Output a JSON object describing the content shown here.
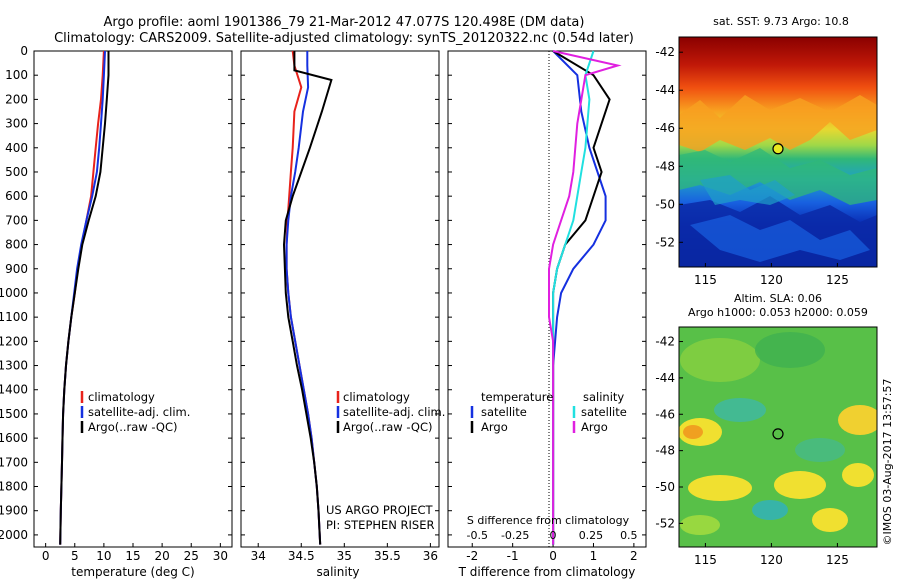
{
  "header": {
    "line1": "Argo profile: aoml 1901386_79 21-Mar-2012 47.077S 120.498E (DM data)",
    "line2": "Climatology: CARS2009. Satellite-adjusted climatology: synTS_20120322.nc (0.54d later)"
  },
  "colors": {
    "climatology": "#e8221b",
    "satellite": "#1530e0",
    "argo": "#000000",
    "satellite_s": "#20e0e0",
    "argo_s": "#e020e0"
  },
  "chart_data": [
    {
      "id": "temperature-panel",
      "type": "line",
      "xlabel": "temperature (deg C)",
      "xticks": [
        "0",
        "5",
        "10",
        "15",
        "20",
        "25",
        "30"
      ],
      "xlim": [
        -2,
        32
      ],
      "ylim": [
        0,
        2050
      ],
      "yticks": [
        "0",
        "100",
        "200",
        "300",
        "400",
        "500",
        "600",
        "700",
        "800",
        "900",
        "1000",
        "1100",
        "1200",
        "1300",
        "1400",
        "1500",
        "1600",
        "1700",
        "1800",
        "1900",
        "2000"
      ],
      "legend": [
        "climatology",
        "satellite-adj. clim.",
        "Argo(..raw -QC)"
      ],
      "series": [
        {
          "name": "climatology",
          "color_key": "climatology",
          "x": [
            10.0,
            9.8,
            9.5,
            9.0,
            8.6,
            8.2,
            7.8,
            7.0,
            6.2,
            5.5,
            5.0,
            4.4,
            3.9,
            3.5,
            3.2,
            3.0,
            2.9,
            2.8,
            2.7,
            2.6,
            2.5
          ],
          "y": [
            0,
            100,
            200,
            300,
            400,
            500,
            600,
            700,
            800,
            900,
            1000,
            1100,
            1200,
            1300,
            1400,
            1500,
            1600,
            1700,
            1800,
            1900,
            2040
          ]
        },
        {
          "name": "satellite-adj. clim.",
          "color_key": "satellite",
          "x": [
            10.2,
            10.0,
            9.8,
            9.5,
            9.2,
            8.8,
            8.0,
            7.0,
            6.1,
            5.4,
            4.9,
            4.4,
            3.9,
            3.5,
            3.2,
            3.0,
            2.9,
            2.8,
            2.7,
            2.6,
            2.5
          ],
          "y": [
            0,
            100,
            200,
            300,
            400,
            500,
            600,
            700,
            800,
            900,
            1000,
            1100,
            1200,
            1300,
            1400,
            1500,
            1600,
            1700,
            1800,
            1900,
            2040
          ]
        },
        {
          "name": "Argo(..raw -QC)",
          "color_key": "argo",
          "x": [
            10.8,
            10.8,
            10.5,
            10.2,
            9.8,
            9.4,
            8.6,
            7.4,
            6.3,
            5.6,
            5.0,
            4.4,
            3.9,
            3.5,
            3.2,
            3.0,
            2.9,
            2.8,
            2.7,
            2.6,
            2.5
          ],
          "y": [
            0,
            100,
            200,
            300,
            400,
            500,
            600,
            700,
            800,
            900,
            1000,
            1100,
            1200,
            1300,
            1400,
            1500,
            1600,
            1700,
            1800,
            1900,
            2040
          ]
        }
      ]
    },
    {
      "id": "salinity-panel",
      "type": "line",
      "xlabel": "salinity",
      "xticks": [
        "34",
        "34.5",
        "35",
        "35.5",
        "36"
      ],
      "xlim": [
        33.8,
        36.1
      ],
      "ylim": [
        0,
        2050
      ],
      "legend": [
        "climatology",
        "satellite-adj. clim.",
        "Argo(..raw -QC)"
      ],
      "annotation": [
        "US ARGO PROJECT",
        "PI: STEPHEN RISER"
      ],
      "series": [
        {
          "name": "climatology",
          "color_key": "climatology",
          "x": [
            34.4,
            34.42,
            34.5,
            34.42,
            34.4,
            34.38,
            34.36,
            34.34,
            34.33,
            34.33,
            34.35,
            34.38,
            34.43,
            34.48,
            34.53,
            34.58,
            34.62,
            34.65,
            34.68,
            34.7,
            34.72
          ],
          "y": [
            0,
            60,
            150,
            250,
            400,
            500,
            600,
            700,
            800,
            900,
            1000,
            1100,
            1200,
            1300,
            1400,
            1500,
            1600,
            1700,
            1800,
            1900,
            2040
          ]
        },
        {
          "name": "satellite-adj. clim.",
          "color_key": "satellite",
          "x": [
            34.57,
            34.57,
            34.58,
            34.52,
            34.47,
            34.43,
            34.38,
            34.35,
            34.33,
            34.33,
            34.35,
            34.38,
            34.43,
            34.48,
            34.53,
            34.58,
            34.62,
            34.65,
            34.68,
            34.7,
            34.72
          ],
          "y": [
            0,
            60,
            150,
            250,
            400,
            500,
            600,
            700,
            800,
            900,
            1000,
            1100,
            1200,
            1300,
            1400,
            1500,
            1600,
            1700,
            1800,
            1900,
            2040
          ]
        },
        {
          "name": "Argo(..raw -QC)",
          "color_key": "argo",
          "x": [
            34.42,
            34.42,
            34.85,
            34.74,
            34.6,
            34.5,
            34.4,
            34.32,
            34.3,
            34.31,
            34.32,
            34.35,
            34.4,
            34.45,
            34.51,
            34.56,
            34.61,
            34.65,
            34.68,
            34.7,
            34.72
          ],
          "y": [
            0,
            80,
            120,
            250,
            400,
            500,
            600,
            700,
            800,
            900,
            1000,
            1100,
            1200,
            1300,
            1400,
            1500,
            1600,
            1700,
            1800,
            1900,
            2040
          ]
        }
      ]
    },
    {
      "id": "difference-panel",
      "type": "line",
      "xlabel": "T difference from climatology",
      "xticks": [
        "-2",
        "-1",
        "0",
        "1",
        "2"
      ],
      "xlim": [
        -2.6,
        2.3
      ],
      "top_label": "S difference from climatology",
      "top_ticks": [
        "-0.5",
        "-0.25",
        "0",
        "0.25",
        "0.5"
      ],
      "ylim": [
        0,
        2050
      ],
      "legend_headers": [
        "temperature",
        "salinity"
      ],
      "legend_t": [
        "satellite",
        "Argo"
      ],
      "legend_s": [
        "satellite",
        "Argo"
      ],
      "series": [
        {
          "name": "T satellite",
          "color_key": "satellite",
          "x": [
            0.0,
            0.6,
            0.7,
            0.9,
            1.1,
            1.3,
            1.3,
            1.0,
            0.5,
            0.2,
            0.1,
            0.05,
            0.0,
            0.0,
            0.0,
            0.0,
            0.0,
            0.0,
            0.0,
            0.0
          ],
          "y": [
            0,
            100,
            250,
            400,
            500,
            600,
            700,
            800,
            900,
            1000,
            1100,
            1200,
            1300,
            1400,
            1500,
            1600,
            1700,
            1800,
            1900,
            2040
          ]
        },
        {
          "name": "T Argo",
          "color_key": "argo",
          "x": [
            0.0,
            1.0,
            1.4,
            1.0,
            1.2,
            1.0,
            0.8,
            0.3,
            0.1,
            0.0,
            0.0,
            0.0,
            0.0,
            0.0,
            0.0,
            0.0,
            0.0,
            0.0,
            0.0,
            0.0
          ],
          "y": [
            0,
            100,
            200,
            400,
            500,
            600,
            700,
            800,
            900,
            1000,
            1100,
            1200,
            1300,
            1400,
            1500,
            1600,
            1700,
            1800,
            1900,
            2040
          ]
        },
        {
          "name": "S satellite",
          "color_key": "satellite_s",
          "x": [
            1.0,
            0.8,
            0.9,
            0.8,
            0.7,
            0.6,
            0.5,
            0.3,
            0.1,
            0.0,
            0.0,
            0.0,
            0.0,
            0.0,
            0.0,
            0.0,
            0.0,
            0.0,
            0.0,
            0.0
          ],
          "y": [
            0,
            100,
            200,
            400,
            500,
            600,
            700,
            800,
            900,
            1000,
            1100,
            1200,
            1300,
            1400,
            1500,
            1600,
            1700,
            1800,
            1900,
            2040
          ]
        },
        {
          "name": "S Argo",
          "color_key": "argo_s",
          "x": [
            0.0,
            1.6,
            0.8,
            0.6,
            0.5,
            0.4,
            0.2,
            0.0,
            -0.1,
            -0.1,
            -0.1,
            0.0,
            0.0,
            0.0,
            0.0,
            0.0,
            0.0,
            0.0,
            0.0,
            0.0
          ],
          "y": [
            0,
            60,
            100,
            300,
            500,
            600,
            700,
            800,
            900,
            1000,
            1100,
            1200,
            1300,
            1400,
            1500,
            1600,
            1700,
            1800,
            1900,
            2040
          ]
        }
      ]
    },
    {
      "id": "sst-map",
      "type": "heatmap",
      "title": "sat. SST: 9.73 Argo: 10.8",
      "xticks": [
        "115",
        "120",
        "125"
      ],
      "yticks": [
        "-42",
        "-44",
        "-46",
        "-48",
        "-50",
        "-52"
      ],
      "xlim": [
        113,
        128
      ],
      "ylim": [
        -53.3,
        -41.2
      ],
      "marker": {
        "lon": 120.5,
        "lat": -47.08
      }
    },
    {
      "id": "sla-map",
      "type": "heatmap",
      "title": [
        "Altim. SLA: 0.06",
        "Argo h1000: 0.053 h2000: 0.059"
      ],
      "xticks": [
        "115",
        "120",
        "125"
      ],
      "yticks": [
        "-42",
        "-44",
        "-46",
        "-48",
        "-50",
        "-52"
      ],
      "xlim": [
        113,
        128
      ],
      "ylim": [
        -53.3,
        -41.2
      ],
      "marker": {
        "lon": 120.5,
        "lat": -47.08
      }
    }
  ],
  "credit": "©IMOS 03-Aug-2017 13:57:57"
}
